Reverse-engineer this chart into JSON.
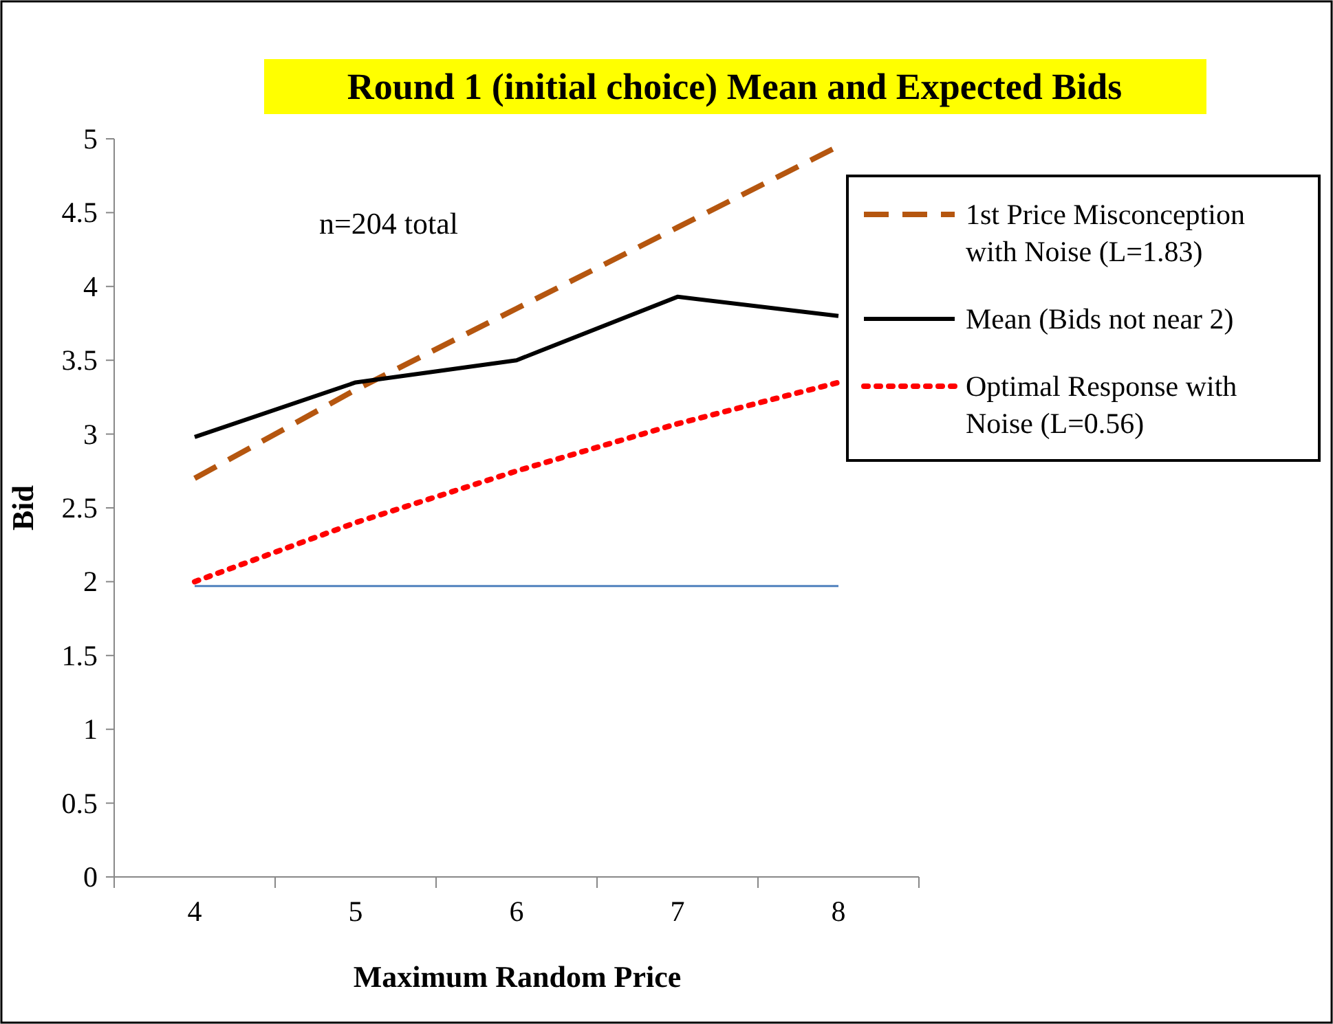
{
  "chart_data": {
    "type": "line",
    "title": "Round 1 (initial choice) Mean and Expected Bids",
    "xlabel": "Maximum Random Price",
    "ylabel": "Bid",
    "annotations": [
      "n=204 total"
    ],
    "categories": [
      "4",
      "5",
      "6",
      "7",
      "8"
    ],
    "series": [
      {
        "name": "1st Price Misconception with Noise (L=1.83)",
        "color": "#b5560f",
        "line_style": "dashed",
        "values": [
          2.7,
          3.3,
          3.85,
          4.4,
          4.95
        ]
      },
      {
        "name": "Mean (Bids not near 2)",
        "color": "#000000",
        "line_style": "solid",
        "values": [
          2.98,
          3.35,
          3.5,
          3.93,
          3.8
        ]
      },
      {
        "name": "Optimal Response with Noise (L=0.56)",
        "color": "#ff0000",
        "line_style": "dotted",
        "values": [
          2.0,
          2.4,
          2.75,
          3.07,
          3.35
        ]
      },
      {
        "color": "#4f81bd",
        "line_style": "solid",
        "values": [
          1.97,
          1.97,
          1.97,
          1.97,
          1.97
        ]
      }
    ],
    "ylim": [
      0,
      5
    ],
    "yticks": [
      0,
      {
        "value": 0.5,
        "label": "0.5"
      },
      1,
      {
        "value": 1.5,
        "label": "1.5"
      },
      2,
      {
        "value": 2.5,
        "label": "2.5"
      },
      3,
      {
        "value": 3.5,
        "label": "3.5"
      },
      4,
      {
        "value": 4.5,
        "label": "4.5"
      },
      5
    ],
    "grid": false,
    "legend": "top right",
    "marker": "none"
  }
}
